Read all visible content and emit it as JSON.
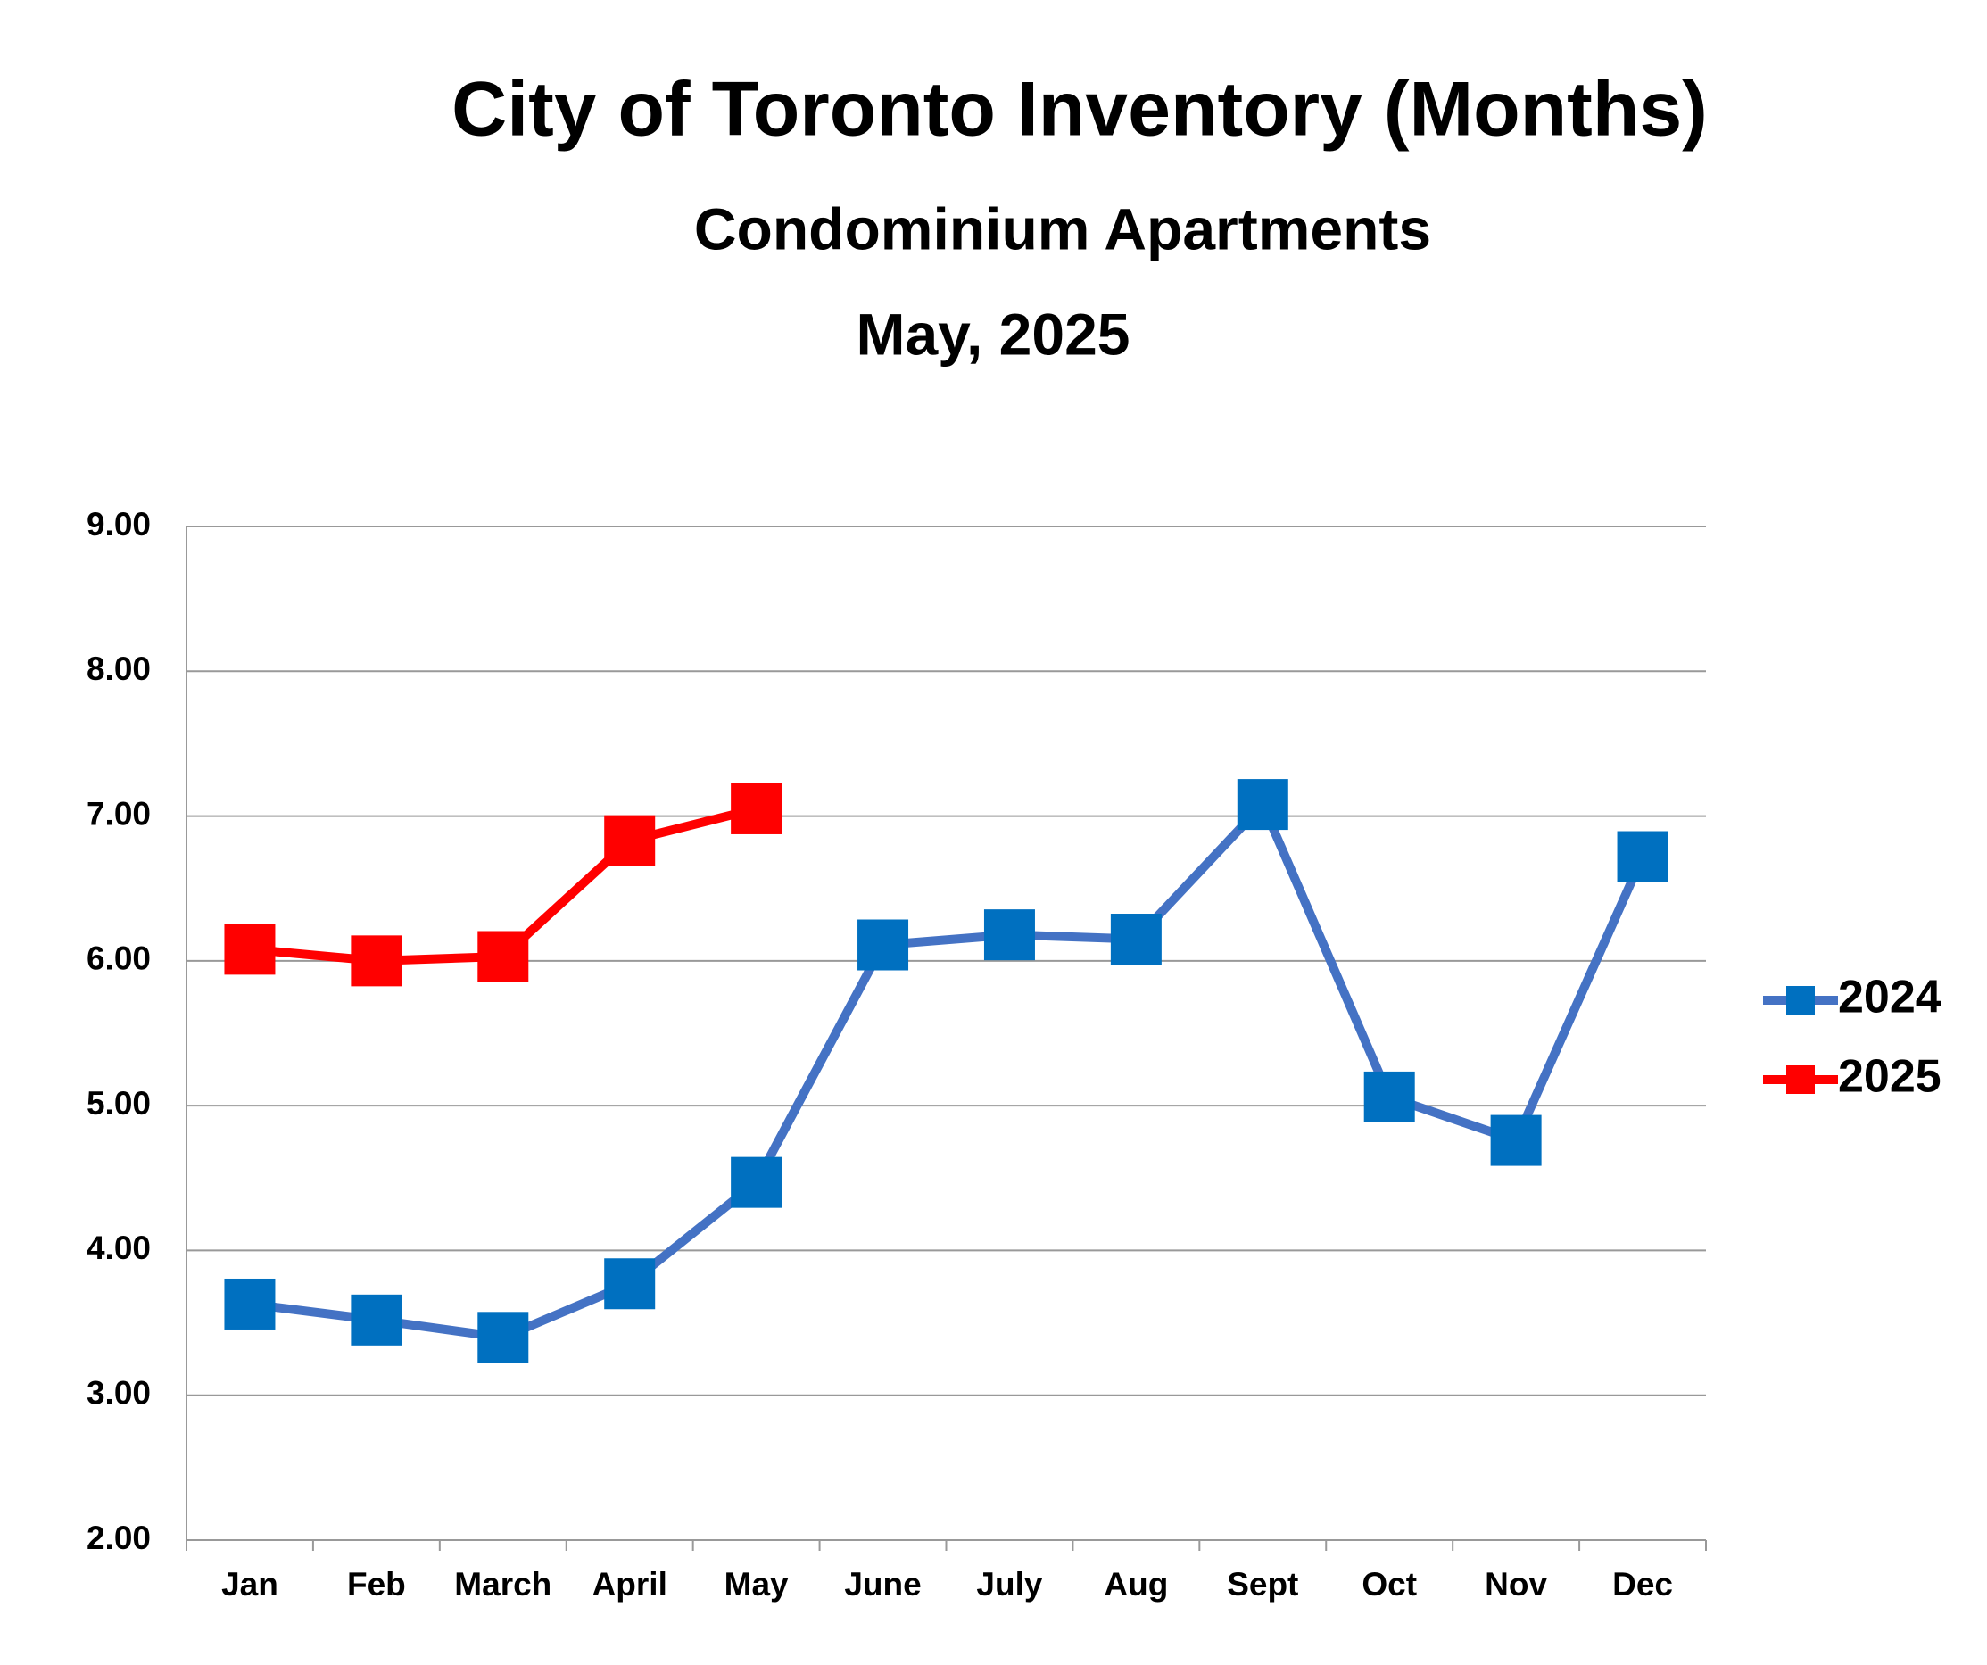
{
  "chart_data": {
    "type": "line",
    "title": "City of Toronto Inventory (Months)",
    "subtitle": "Condominium Apartments",
    "date": "May, 2025",
    "categories": [
      "Jan",
      "Feb",
      "March",
      "April",
      "May",
      "June",
      "July",
      "Aug",
      "Sept",
      "Oct",
      "Nov",
      "Dec"
    ],
    "series": [
      {
        "name": "2024",
        "color": "#4472c4",
        "marker_color": "#0070c0",
        "values": [
          3.63,
          3.52,
          3.4,
          3.77,
          4.47,
          6.11,
          6.18,
          6.15,
          7.08,
          5.06,
          4.76,
          6.72
        ]
      },
      {
        "name": "2025",
        "color": "#ff0000",
        "marker_color": "#ff0000",
        "values": [
          6.08,
          6.0,
          6.03,
          6.83,
          7.05,
          null,
          null,
          null,
          null,
          null,
          null,
          null
        ]
      }
    ],
    "ylim": [
      2,
      9
    ],
    "yticks": [
      {
        "value": 2,
        "label": "2.00"
      },
      {
        "value": 3,
        "label": "3.00"
      },
      {
        "value": 4,
        "label": "4.00"
      },
      {
        "value": 5,
        "label": "5.00"
      },
      {
        "value": 6,
        "label": "6.00"
      },
      {
        "value": 7,
        "label": "7.00"
      },
      {
        "value": 8,
        "label": "8.00"
      },
      {
        "value": 9,
        "label": "9.00"
      }
    ],
    "grid": true,
    "legend": "right"
  }
}
